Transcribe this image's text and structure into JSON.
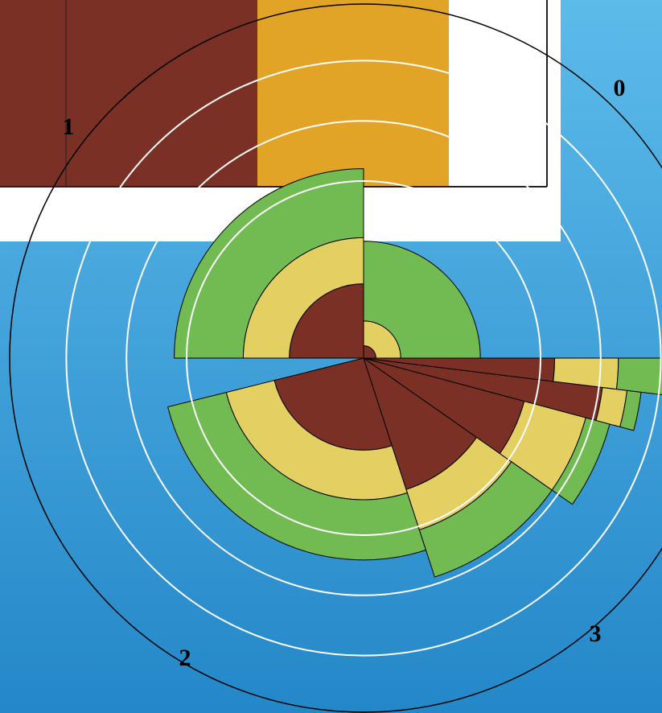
{
  "chart_data": {
    "type": "polar-stacked",
    "theta_start": [
      0,
      270,
      162,
      125,
      105,
      97,
      90
    ],
    "theta_end": [
      90,
      360,
      256,
      162,
      125,
      105,
      97
    ],
    "series": [
      {
        "color": "#7a3024",
        "values": [
          0.35,
          2.1,
          2.6,
          3.9,
          4.7,
          6.8,
          5.4
        ]
      },
      {
        "color": "#e3cf62",
        "values": [
          0.7,
          1.3,
          1.4,
          1.2,
          1.8,
          0.7,
          1.8
        ]
      },
      {
        "color": "#72bb53",
        "values": [
          2.25,
          1.95,
          1.7,
          1.4,
          0.7,
          0.4,
          6
        ]
      }
    ],
    "rlim": [
      0,
      10
    ],
    "rings": [
      5,
      6.7,
      8.4
    ],
    "angular_labels": [
      0,
      1,
      2,
      3
    ]
  }
}
